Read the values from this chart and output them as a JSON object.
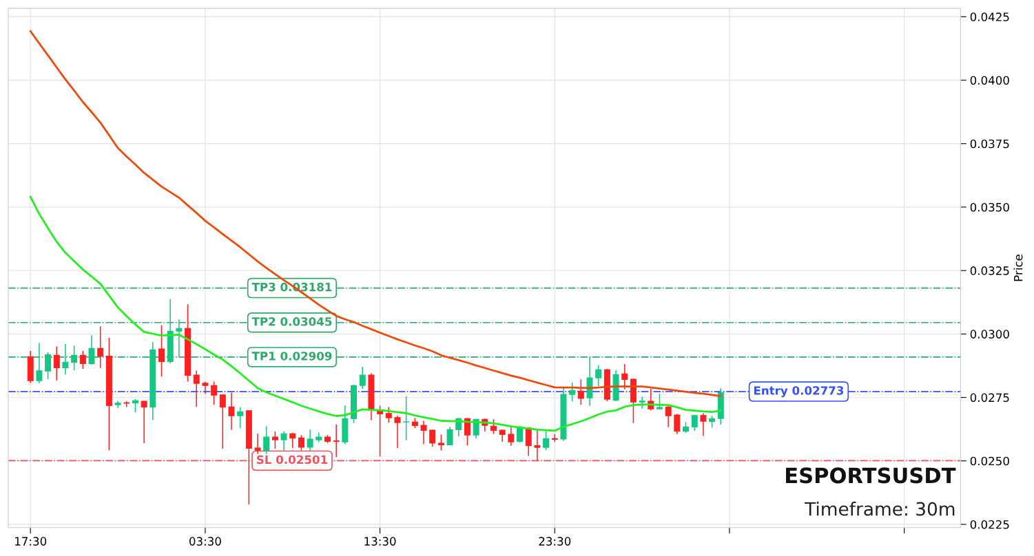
{
  "chart_data": {
    "type": "candlestick",
    "ylabel": "Price",
    "categories": [
      "17:30",
      null,
      null,
      null,
      null,
      null,
      null,
      null,
      null,
      null,
      null,
      null,
      null,
      null,
      null,
      null,
      null,
      null,
      null,
      null,
      "03:30",
      null,
      null,
      null,
      null,
      null,
      null,
      null,
      null,
      null,
      null,
      null,
      null,
      null,
      null,
      null,
      null,
      null,
      null,
      null,
      "13:30",
      null,
      null,
      null,
      null,
      null,
      null,
      null,
      null,
      null,
      null,
      null,
      null,
      null,
      null,
      null,
      null,
      null,
      null,
      null,
      "23:30",
      null,
      null,
      null,
      null,
      null,
      null,
      null,
      null,
      null,
      null,
      null,
      null,
      null,
      null,
      null,
      null,
      null,
      null,
      null
    ],
    "ohlc": [
      [
        0.02911,
        0.02933,
        0.02807,
        0.02816
      ],
      [
        0.02816,
        0.02965,
        0.02806,
        0.02855
      ],
      [
        0.02854,
        0.02928,
        0.02822,
        0.02919
      ],
      [
        0.02916,
        0.02951,
        0.02817,
        0.02867
      ],
      [
        0.02867,
        0.0296,
        0.0284,
        0.02889
      ],
      [
        0.02888,
        0.02954,
        0.02857,
        0.02916
      ],
      [
        0.02916,
        0.02933,
        0.02863,
        0.02883
      ],
      [
        0.02883,
        0.02995,
        0.02879,
        0.02943
      ],
      [
        0.02943,
        0.0303,
        0.02866,
        0.02912
      ],
      [
        0.02913,
        0.02985,
        0.02542,
        0.02718
      ],
      [
        0.02721,
        0.02736,
        0.02708,
        0.02728
      ],
      [
        0.02729,
        0.02735,
        0.02712,
        0.02727
      ],
      [
        0.02728,
        0.02744,
        0.02691,
        0.02737
      ],
      [
        0.02735,
        0.02735,
        0.0257,
        0.02712
      ],
      [
        0.02712,
        0.02968,
        0.02661,
        0.02938
      ],
      [
        0.02941,
        0.03035,
        0.02832,
        0.02891
      ],
      [
        0.02891,
        0.03137,
        0.02884,
        0.03011
      ],
      [
        0.03011,
        0.03057,
        0.02911,
        0.03022
      ],
      [
        0.03022,
        0.03117,
        0.02812,
        0.02837
      ],
      [
        0.02838,
        0.02855,
        0.02713,
        0.02805
      ],
      [
        0.02806,
        0.02812,
        0.02764,
        0.02797
      ],
      [
        0.02797,
        0.02812,
        0.02721,
        0.02759
      ],
      [
        0.0276,
        0.0276,
        0.02548,
        0.02712
      ],
      [
        0.02713,
        0.02769,
        0.02622,
        0.02678
      ],
      [
        0.02678,
        0.02712,
        0.02629,
        0.02694
      ],
      [
        0.02698,
        0.02698,
        0.02328,
        0.0255
      ],
      [
        0.02551,
        0.02607,
        0.02527,
        0.02542
      ],
      [
        0.02541,
        0.02637,
        0.02527,
        0.02594
      ],
      [
        0.02594,
        0.02616,
        0.02548,
        0.02583
      ],
      [
        0.02583,
        0.02616,
        0.02541,
        0.02607
      ],
      [
        0.02607,
        0.0261,
        0.02551,
        0.0259
      ],
      [
        0.02591,
        0.02602,
        0.02541,
        0.02554
      ],
      [
        0.02554,
        0.02623,
        0.02541,
        0.02586
      ],
      [
        0.02583,
        0.02612,
        0.02574,
        0.02594
      ],
      [
        0.02594,
        0.02602,
        0.0257,
        0.02577
      ],
      [
        0.02579,
        0.02643,
        0.02515,
        0.02577
      ],
      [
        0.02575,
        0.02718,
        0.02566,
        0.02667
      ],
      [
        0.02666,
        0.028,
        0.02649,
        0.02797
      ],
      [
        0.02797,
        0.0287,
        0.02784,
        0.02838
      ],
      [
        0.02838,
        0.02845,
        0.0266,
        0.02703
      ],
      [
        0.02701,
        0.02717,
        0.02518,
        0.02685
      ],
      [
        0.02687,
        0.02712,
        0.02651,
        0.0267
      ],
      [
        0.02671,
        0.02678,
        0.02551,
        0.02651
      ],
      [
        0.02653,
        0.02755,
        0.02581,
        0.02654
      ],
      [
        0.02653,
        0.02669,
        0.02629,
        0.02639
      ],
      [
        0.0264,
        0.02658,
        0.02566,
        0.0262
      ],
      [
        0.02621,
        0.02623,
        0.02556,
        0.0257
      ],
      [
        0.0257,
        0.02604,
        0.02541,
        0.02563
      ],
      [
        0.02563,
        0.02634,
        0.02562,
        0.02623
      ],
      [
        0.02623,
        0.0267,
        0.02597,
        0.02667
      ],
      [
        0.02667,
        0.02669,
        0.02561,
        0.02602
      ],
      [
        0.02602,
        0.02665,
        0.02588,
        0.02664
      ],
      [
        0.02664,
        0.02667,
        0.02615,
        0.0264
      ],
      [
        0.02637,
        0.02664,
        0.02606,
        0.0262
      ],
      [
        0.02621,
        0.02623,
        0.02575,
        0.02604
      ],
      [
        0.02605,
        0.02637,
        0.0256,
        0.02575
      ],
      [
        0.02577,
        0.02638,
        0.02572,
        0.02633
      ],
      [
        0.0263,
        0.02631,
        0.0252,
        0.0256
      ],
      [
        0.0256,
        0.02624,
        0.025,
        0.02553
      ],
      [
        0.02553,
        0.02617,
        0.02542,
        0.02588
      ],
      [
        0.02588,
        0.02606,
        0.02575,
        0.02585
      ],
      [
        0.02586,
        0.02787,
        0.02579,
        0.02762
      ],
      [
        0.02762,
        0.02809,
        0.02735,
        0.02778
      ],
      [
        0.02775,
        0.02821,
        0.02721,
        0.02746
      ],
      [
        0.02748,
        0.02909,
        0.02717,
        0.02827
      ],
      [
        0.02827,
        0.02877,
        0.02794,
        0.02859
      ],
      [
        0.02859,
        0.02863,
        0.02735,
        0.02743
      ],
      [
        0.02739,
        0.02857,
        0.02735,
        0.0284
      ],
      [
        0.02843,
        0.02881,
        0.02782,
        0.02821
      ],
      [
        0.02822,
        0.02825,
        0.02649,
        0.02732
      ],
      [
        0.02732,
        0.02753,
        0.02706,
        0.02736
      ],
      [
        0.02735,
        0.02784,
        0.02699,
        0.02705
      ],
      [
        0.02705,
        0.02765,
        0.02703,
        0.02711
      ],
      [
        0.02712,
        0.02721,
        0.02633,
        0.02678
      ],
      [
        0.02681,
        0.02685,
        0.02606,
        0.02617
      ],
      [
        0.02617,
        0.02653,
        0.0261,
        0.02634
      ],
      [
        0.02634,
        0.02679,
        0.02619,
        0.02679
      ],
      [
        0.02679,
        0.02688,
        0.02599,
        0.02656
      ],
      [
        0.02655,
        0.02678,
        0.02631,
        0.02667
      ],
      [
        0.02667,
        0.02786,
        0.02643,
        0.02769
      ]
    ],
    "colors": [
      "#ff2020",
      "#16c784",
      "#16c784",
      "#ff2020",
      "#16c784",
      "#16c784",
      "#ff2020",
      "#16c784",
      "#ff2020",
      "#ff2020",
      "#16c784",
      "#ff2020",
      "#16c784",
      "#ff2020",
      "#16c784",
      "#ff2020",
      "#16c784",
      "#16c784",
      "#ff2020",
      "#ff2020",
      "#ff2020",
      "#ff2020",
      "#ff2020",
      "#ff2020",
      "#16c784",
      "#ff2020",
      "#ff2020",
      "#16c784",
      "#ff2020",
      "#16c784",
      "#ff2020",
      "#ff2020",
      "#16c784",
      "#16c784",
      "#ff2020",
      "#ff2020",
      "#16c784",
      "#16c784",
      "#16c784",
      "#ff2020",
      "#ff2020",
      "#ff2020",
      "#ff2020",
      "#16c784",
      "#ff2020",
      "#ff2020",
      "#ff2020",
      "#ff2020",
      "#16c784",
      "#16c784",
      "#ff2020",
      "#16c784",
      "#ff2020",
      "#ff2020",
      "#ff2020",
      "#ff2020",
      "#16c784",
      "#ff2020",
      "#ff2020",
      "#16c784",
      "#ff2020",
      "#16c784",
      "#16c784",
      "#ff2020",
      "#16c784",
      "#16c784",
      "#ff2020",
      "#16c784",
      "#ff2020",
      "#ff2020",
      "#16c784",
      "#ff2020",
      "#16c784",
      "#ff2020",
      "#ff2020",
      "#16c784",
      "#16c784",
      "#ff2020",
      "#16c784",
      "#16c784"
    ],
    "series": [
      {
        "type": "line",
        "color": "#f04a0a",
        "values": [
          0.04193,
          0.04145,
          0.04098,
          0.0405,
          0.04003,
          0.03959,
          0.03914,
          0.03874,
          0.03833,
          0.03783,
          0.03733,
          0.03699,
          0.03668,
          0.03635,
          0.03608,
          0.03581,
          0.03559,
          0.03537,
          0.03507,
          0.03477,
          0.03446,
          0.0342,
          0.03394,
          0.03368,
          0.03342,
          0.03314,
          0.03286,
          0.0326,
          0.03236,
          0.03212,
          0.03189,
          0.03165,
          0.0314,
          0.03115,
          0.03093,
          0.03071,
          0.03058,
          0.03047,
          0.03032,
          0.03019,
          0.03005,
          0.02992,
          0.02979,
          0.02967,
          0.02955,
          0.02944,
          0.02932,
          0.02916,
          0.02906,
          0.02897,
          0.02887,
          0.02876,
          0.02866,
          0.02856,
          0.02846,
          0.02836,
          0.02828,
          0.02818,
          0.02808,
          0.02799,
          0.0279,
          0.02789,
          0.02789,
          0.02788,
          0.02787,
          0.02789,
          0.02792,
          0.02793,
          0.02793,
          0.02793,
          0.02793,
          0.02789,
          0.02785,
          0.02781,
          0.02777,
          0.02772,
          0.02768,
          0.02765,
          0.0276,
          0.02755
        ]
      },
      {
        "type": "line",
        "color": "#22ee22",
        "values": [
          0.0354,
          0.03473,
          0.03417,
          0.03363,
          0.0332,
          0.03287,
          0.03254,
          0.03226,
          0.03198,
          0.03151,
          0.03105,
          0.0307,
          0.03038,
          0.03008,
          0.03001,
          0.02994,
          0.02996,
          0.02997,
          0.02979,
          0.0296,
          0.0294,
          0.02919,
          0.02899,
          0.02873,
          0.02845,
          0.02816,
          0.02787,
          0.0277,
          0.02757,
          0.02744,
          0.02731,
          0.02717,
          0.02706,
          0.02695,
          0.02685,
          0.02677,
          0.0268,
          0.02692,
          0.02703,
          0.02701,
          0.027,
          0.02696,
          0.02692,
          0.02688,
          0.02679,
          0.02672,
          0.02665,
          0.02658,
          0.02657,
          0.02656,
          0.02654,
          0.02653,
          0.02651,
          0.02648,
          0.02642,
          0.02636,
          0.02632,
          0.02628,
          0.02623,
          0.02621,
          0.02619,
          0.02635,
          0.02645,
          0.02656,
          0.02669,
          0.02683,
          0.02694,
          0.02699,
          0.02713,
          0.0272,
          0.02722,
          0.02722,
          0.02721,
          0.0272,
          0.02711,
          0.02701,
          0.02698,
          0.02695,
          0.02693,
          0.02698
        ]
      }
    ],
    "ref_lines": [
      {
        "axis": "y",
        "value": 0.03181,
        "label": "TP3 0.03181",
        "color": "#2ea86a",
        "line_style": "dashdot"
      },
      {
        "axis": "y",
        "value": 0.03045,
        "label": "TP2 0.03045",
        "color": "#2ea86a",
        "line_style": "dashdot"
      },
      {
        "axis": "y",
        "value": 0.02909,
        "label": "TP1 0.02909",
        "color": "#2ea86a",
        "line_style": "dashdot"
      },
      {
        "axis": "y",
        "value": 0.02773,
        "label": "Entry 0.02773",
        "color": "#3350ff",
        "line_style": "dashdot"
      },
      {
        "axis": "y",
        "value": 0.02501,
        "label": "SL 0.02501",
        "color": "#f05060",
        "line_style": "dashdot"
      }
    ],
    "annotations": [
      "ESPORTSUSDT",
      "Timeframe: 30m"
    ],
    "ylim": [
      0.02237,
      0.04283
    ],
    "yticks": [
      {
        "value": 0.0225,
        "label": "0.0225"
      },
      {
        "value": 0.025,
        "label": "0.0250"
      },
      {
        "value": 0.0275,
        "label": "0.0275"
      },
      {
        "value": 0.03,
        "label": "0.0300"
      },
      {
        "value": 0.0325,
        "label": "0.0325"
      },
      {
        "value": 0.035,
        "label": "0.0350"
      },
      {
        "value": 0.0375,
        "label": "0.0375"
      },
      {
        "value": 0.04,
        "label": "0.0400"
      },
      {
        "value": 0.0425,
        "label": "0.0425"
      }
    ],
    "grid": true
  }
}
